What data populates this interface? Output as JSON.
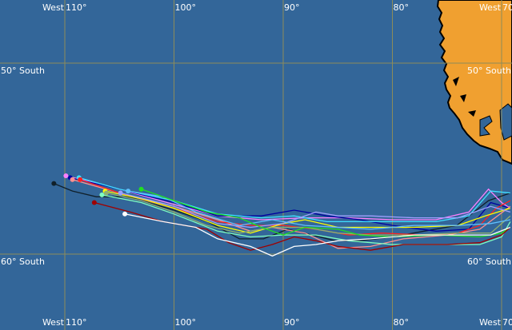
{
  "colors": {
    "ocean": "#336699",
    "land": "#f0a030",
    "grid": "#8c8c5a",
    "coast": "#000000"
  },
  "grid": {
    "lon_labels": [
      {
        "prefix": "West",
        "value": "110°",
        "lon": 110
      },
      {
        "prefix": "",
        "value": "100°",
        "lon": 100
      },
      {
        "prefix": "",
        "value": "90°",
        "lon": 90
      },
      {
        "prefix": "",
        "value": "80°",
        "lon": 80
      },
      {
        "prefix": "West",
        "value": "70",
        "lon": 70
      }
    ],
    "lat_labels": [
      {
        "text": "50° South",
        "lat": 50
      },
      {
        "text": "60° South",
        "lat": 60
      }
    ]
  },
  "tracks": [
    {
      "color": "#10202a",
      "points": [
        [
          111.0,
          56.3
        ],
        [
          109.3,
          56.7
        ],
        [
          107.1,
          57.0
        ],
        [
          104.2,
          57.0
        ],
        [
          100,
          57.7
        ],
        [
          96.9,
          58.3
        ],
        [
          94,
          59.2
        ],
        [
          91.8,
          59.2
        ],
        [
          89.6,
          58.7
        ],
        [
          85.2,
          59.3
        ],
        [
          83,
          59.3
        ],
        [
          80,
          59.1
        ],
        [
          77.1,
          58.8
        ],
        [
          74.1,
          58.5
        ],
        [
          71.2,
          57.2
        ],
        [
          69.2,
          56.8
        ]
      ]
    },
    {
      "color": "#ff80ff",
      "points": [
        [
          109.9,
          55.9
        ],
        [
          105,
          56.6
        ],
        [
          100,
          57.4
        ],
        [
          96,
          58.0
        ],
        [
          92,
          58.2
        ],
        [
          88,
          58.1
        ],
        [
          84,
          58.1
        ],
        [
          80,
          58.2
        ],
        [
          76,
          58.2
        ],
        [
          73,
          57.8
        ],
        [
          71.2,
          56.6
        ],
        [
          70,
          57.3
        ],
        [
          69.2,
          57.6
        ]
      ]
    },
    {
      "color": "#0000a0",
      "points": [
        [
          109.5,
          56.0
        ],
        [
          105,
          56.6
        ],
        [
          100,
          57.3
        ],
        [
          96,
          58.0
        ],
        [
          92,
          58.0
        ],
        [
          89,
          57.7
        ],
        [
          86,
          58.0
        ],
        [
          83,
          58.2
        ],
        [
          80,
          58.5
        ],
        [
          76,
          58.8
        ],
        [
          73,
          58.7
        ],
        [
          71,
          57.3
        ],
        [
          69.2,
          57.6
        ]
      ]
    },
    {
      "color": "#ff9090",
      "points": [
        [
          109.3,
          56.1
        ],
        [
          105,
          56.8
        ],
        [
          100,
          57.5
        ],
        [
          96,
          58.2
        ],
        [
          93,
          58.8
        ],
        [
          91,
          58.6
        ],
        [
          88,
          58.9
        ],
        [
          85,
          59.7
        ],
        [
          82,
          59.6
        ],
        [
          79,
          59.2
        ],
        [
          75,
          59.0
        ],
        [
          72,
          58.7
        ],
        [
          69.2,
          57.5
        ]
      ]
    },
    {
      "color": "#40e0ff",
      "points": [
        [
          108.7,
          56.0
        ],
        [
          105,
          56.6
        ],
        [
          100,
          57.2
        ],
        [
          96,
          57.9
        ],
        [
          92,
          58.1
        ],
        [
          89,
          58.0
        ],
        [
          86,
          58.3
        ],
        [
          83,
          58.3
        ],
        [
          80,
          58.3
        ],
        [
          76,
          58.3
        ],
        [
          73,
          58.0
        ],
        [
          71,
          56.7
        ],
        [
          69.2,
          56.8
        ]
      ]
    },
    {
      "color": "#ff2020",
      "points": [
        [
          108.6,
          56.1
        ],
        [
          105,
          56.8
        ],
        [
          100,
          57.6
        ],
        [
          96,
          58.3
        ],
        [
          93,
          58.5
        ],
        [
          90,
          58.5
        ],
        [
          87,
          58.7
        ],
        [
          84,
          59.0
        ],
        [
          81,
          58.9
        ],
        [
          77,
          59.0
        ],
        [
          74,
          58.9
        ],
        [
          72,
          58.5
        ],
        [
          70.5,
          57.6
        ],
        [
          69.2,
          57.2
        ]
      ]
    },
    {
      "color": "#ffff00",
      "points": [
        [
          106.3,
          56.7
        ],
        [
          103,
          57.1
        ],
        [
          100,
          57.6
        ],
        [
          96,
          58.5
        ],
        [
          93,
          58.9
        ],
        [
          90,
          58.4
        ],
        [
          88,
          58.2
        ],
        [
          85,
          58.6
        ],
        [
          82,
          58.6
        ],
        [
          78,
          58.6
        ],
        [
          74,
          58.5
        ],
        [
          71.5,
          58.0
        ],
        [
          69.2,
          57.6
        ]
      ]
    },
    {
      "color": "#90b070",
      "points": [
        [
          106.2,
          56.8
        ],
        [
          103,
          57.2
        ],
        [
          100,
          57.8
        ],
        [
          97,
          58.5
        ],
        [
          94,
          58.9
        ],
        [
          91,
          58.6
        ],
        [
          88,
          58.6
        ],
        [
          85,
          58.9
        ],
        [
          82,
          59.0
        ],
        [
          78,
          59.0
        ],
        [
          74,
          58.9
        ],
        [
          71,
          58.9
        ],
        [
          69.2,
          58.0
        ]
      ]
    },
    {
      "color": "#80ffc0",
      "points": [
        [
          106.6,
          56.9
        ],
        [
          103,
          57.3
        ],
        [
          100,
          57.9
        ],
        [
          96,
          58.8
        ],
        [
          93,
          59.1
        ],
        [
          90,
          59.0
        ],
        [
          87,
          59.0
        ],
        [
          84,
          59.3
        ],
        [
          80,
          59.5
        ],
        [
          76,
          59.5
        ],
        [
          72,
          59.5
        ],
        [
          70,
          59.1
        ],
        [
          69.2,
          58.3
        ]
      ]
    },
    {
      "color": "#a0a0ff",
      "points": [
        [
          104.9,
          56.8
        ],
        [
          102,
          57.2
        ],
        [
          100,
          57.5
        ],
        [
          96,
          58.4
        ],
        [
          93,
          58.6
        ],
        [
          90,
          58.4
        ],
        [
          87,
          57.8
        ],
        [
          85,
          58.0
        ],
        [
          82,
          58.0
        ],
        [
          78,
          58.1
        ],
        [
          74,
          58.1
        ],
        [
          71,
          57.5
        ],
        [
          69.2,
          57.8
        ]
      ]
    },
    {
      "color": "#60c0ff",
      "points": [
        [
          104.2,
          56.7
        ],
        [
          101,
          57.0
        ],
        [
          98,
          57.8
        ],
        [
          94,
          58.5
        ],
        [
          91,
          58.2
        ],
        [
          88,
          58.5
        ],
        [
          85,
          58.6
        ],
        [
          82,
          58.7
        ],
        [
          78,
          58.5
        ],
        [
          74,
          58.5
        ],
        [
          71,
          58.4
        ],
        [
          69.2,
          58.2
        ]
      ]
    },
    {
      "color": "#20e020",
      "points": [
        [
          103,
          56.6
        ],
        [
          100,
          57.2
        ],
        [
          97,
          57.8
        ],
        [
          94,
          58.1
        ],
        [
          92,
          58.6
        ],
        [
          90,
          59.0
        ],
        [
          88,
          58.6
        ],
        [
          85,
          58.7
        ],
        [
          83,
          59.0
        ],
        [
          80,
          59.1
        ],
        [
          76,
          59.0
        ],
        [
          72,
          59.1
        ],
        [
          70,
          58.9
        ],
        [
          69.2,
          58.6
        ]
      ]
    },
    {
      "color": "#a00000",
      "points": [
        [
          107.3,
          57.3
        ],
        [
          104,
          57.8
        ],
        [
          101,
          58.3
        ],
        [
          97,
          58.7
        ],
        [
          95,
          59.4
        ],
        [
          93,
          59.8
        ],
        [
          91,
          59.5
        ],
        [
          89,
          59.1
        ],
        [
          87,
          59.3
        ],
        [
          85,
          59.6
        ],
        [
          82,
          59.8
        ],
        [
          79,
          59.5
        ],
        [
          75,
          59.5
        ],
        [
          72,
          59.4
        ],
        [
          70,
          59.0
        ],
        [
          69.2,
          58.6
        ]
      ]
    },
    {
      "color": "#ffffff",
      "points": [
        [
          104.5,
          57.9
        ],
        [
          101,
          58.3
        ],
        [
          98,
          58.6
        ],
        [
          96,
          59.2
        ],
        [
          93,
          59.6
        ],
        [
          91,
          60.1
        ],
        [
          89,
          59.6
        ],
        [
          87,
          59.5
        ],
        [
          85,
          59.3
        ],
        [
          82,
          59.2
        ],
        [
          78,
          59.0
        ],
        [
          74,
          59.0
        ],
        [
          71,
          59.0
        ],
        [
          69.2,
          58.6
        ]
      ]
    }
  ]
}
